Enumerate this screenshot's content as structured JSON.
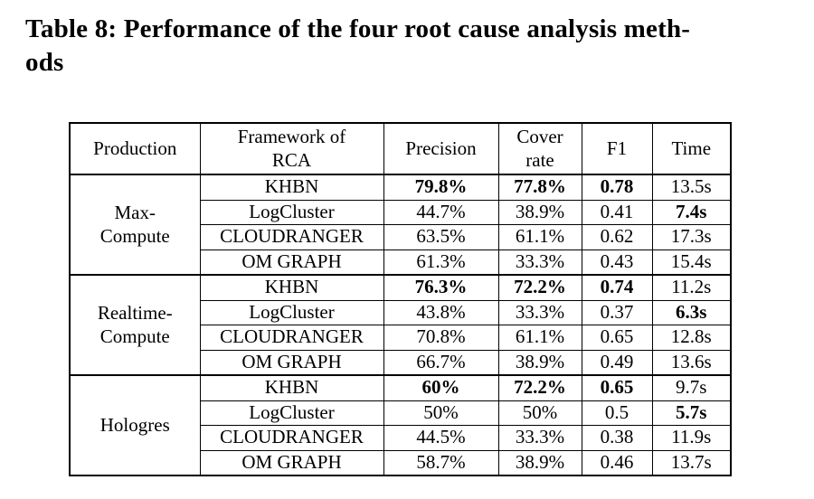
{
  "page": {
    "title_lines": [
      "Table 8: Performance of the four root cause analysis meth-",
      "ods"
    ]
  },
  "table": {
    "headers": {
      "production": "Production",
      "framework": "Framework of\nRCA",
      "precision": "Precision",
      "cover": "Cover\nrate",
      "f1": "F1",
      "time": "Time"
    },
    "groups": [
      {
        "production": "Max-\nCompute",
        "rows": [
          {
            "method": "KHBN",
            "cells": [
              {
                "v": "79.8%",
                "b": true
              },
              {
                "v": "77.8%",
                "b": true
              },
              {
                "v": "0.78",
                "b": true
              },
              {
                "v": "13.5s",
                "b": false
              }
            ]
          },
          {
            "method": "LogCluster",
            "cells": [
              {
                "v": "44.7%",
                "b": false
              },
              {
                "v": "38.9%",
                "b": false
              },
              {
                "v": "0.41",
                "b": false
              },
              {
                "v": "7.4s",
                "b": true
              }
            ]
          },
          {
            "method": "CLOUDRANGER",
            "cells": [
              {
                "v": "63.5%",
                "b": false
              },
              {
                "v": "61.1%",
                "b": false
              },
              {
                "v": "0.62",
                "b": false
              },
              {
                "v": "17.3s",
                "b": false
              }
            ]
          },
          {
            "method": "OM GRAPH",
            "cells": [
              {
                "v": "61.3%",
                "b": false
              },
              {
                "v": "33.3%",
                "b": false
              },
              {
                "v": "0.43",
                "b": false
              },
              {
                "v": "15.4s",
                "b": false
              }
            ]
          }
        ]
      },
      {
        "production": "Realtime-\nCompute",
        "rows": [
          {
            "method": "KHBN",
            "cells": [
              {
                "v": "76.3%",
                "b": true
              },
              {
                "v": "72.2%",
                "b": true
              },
              {
                "v": "0.74",
                "b": true
              },
              {
                "v": "11.2s",
                "b": false
              }
            ]
          },
          {
            "method": "LogCluster",
            "cells": [
              {
                "v": "43.8%",
                "b": false
              },
              {
                "v": "33.3%",
                "b": false
              },
              {
                "v": "0.37",
                "b": false
              },
              {
                "v": "6.3s",
                "b": true
              }
            ]
          },
          {
            "method": "CLOUDRANGER",
            "cells": [
              {
                "v": "70.8%",
                "b": false
              },
              {
                "v": "61.1%",
                "b": false
              },
              {
                "v": "0.65",
                "b": false
              },
              {
                "v": "12.8s",
                "b": false
              }
            ]
          },
          {
            "method": "OM GRAPH",
            "cells": [
              {
                "v": "66.7%",
                "b": false
              },
              {
                "v": "38.9%",
                "b": false
              },
              {
                "v": "0.49",
                "b": false
              },
              {
                "v": "13.6s",
                "b": false
              }
            ]
          }
        ]
      },
      {
        "production": "Hologres",
        "rows": [
          {
            "method": "KHBN",
            "cells": [
              {
                "v": "60%",
                "b": true
              },
              {
                "v": "72.2%",
                "b": true
              },
              {
                "v": "0.65",
                "b": true
              },
              {
                "v": "9.7s",
                "b": false
              }
            ]
          },
          {
            "method": "LogCluster",
            "cells": [
              {
                "v": "50%",
                "b": false
              },
              {
                "v": "50%",
                "b": false
              },
              {
                "v": "0.5",
                "b": false
              },
              {
                "v": "5.7s",
                "b": true
              }
            ]
          },
          {
            "method": "CLOUDRANGER",
            "cells": [
              {
                "v": "44.5%",
                "b": false
              },
              {
                "v": "33.3%",
                "b": false
              },
              {
                "v": "0.38",
                "b": false
              },
              {
                "v": "11.9s",
                "b": false
              }
            ]
          },
          {
            "method": "OM GRAPH",
            "cells": [
              {
                "v": "58.7%",
                "b": false
              },
              {
                "v": "38.9%",
                "b": false
              },
              {
                "v": "0.46",
                "b": false
              },
              {
                "v": "13.7s",
                "b": false
              }
            ]
          }
        ]
      }
    ]
  }
}
